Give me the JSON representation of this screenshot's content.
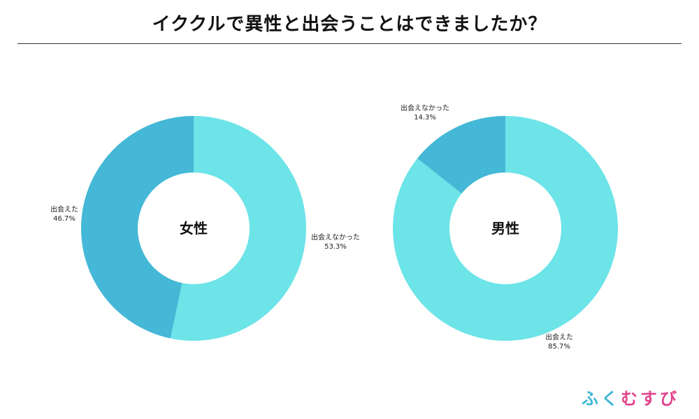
{
  "title": "イククルで異性と出会うことはできましたか？",
  "logo": {
    "text": "ふくむすび",
    "colors": [
      "#3bb6d6",
      "#3bb6d6",
      "#e0438c",
      "#e0438c",
      "#e0438c"
    ]
  },
  "colors": {
    "light": "#6ce4e8",
    "dark": "#44b8d6"
  },
  "chart_data": [
    {
      "type": "pie",
      "center_label": "女性",
      "slices": [
        {
          "label": "出会えなかった",
          "value": 53.3,
          "display": "53.3%",
          "color": "#6ce4e8"
        },
        {
          "label": "出会えた",
          "value": 46.7,
          "display": "46.7%",
          "color": "#44b8d6"
        }
      ]
    },
    {
      "type": "pie",
      "center_label": "男性",
      "slices": [
        {
          "label": "出会えた",
          "value": 85.7,
          "display": "85.7%",
          "color": "#6ce4e8"
        },
        {
          "label": "出会えなかった",
          "value": 14.3,
          "display": "14.3%",
          "color": "#44b8d6"
        }
      ]
    }
  ]
}
